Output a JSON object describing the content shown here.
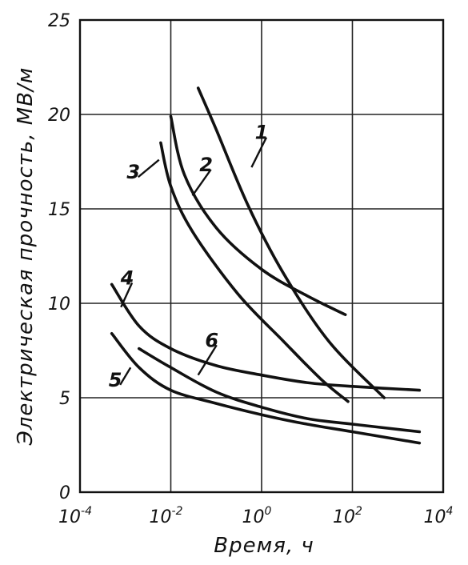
{
  "chart_data": {
    "type": "line",
    "xlabel": "Время, ч",
    "ylabel": "Электрическая прочность, МВ/м",
    "x_scale": "log",
    "xlim": [
      0.0001,
      10000
    ],
    "ylim": [
      0,
      25
    ],
    "x_ticks": [
      {
        "value": 0.0001,
        "base": "10",
        "exp": "-4"
      },
      {
        "value": 0.01,
        "base": "10",
        "exp": "-2"
      },
      {
        "value": 1,
        "base": "10",
        "exp": "0"
      },
      {
        "value": 100,
        "base": "10",
        "exp": "2"
      },
      {
        "value": 10000,
        "base": "10",
        "exp": "4"
      }
    ],
    "y_ticks": [
      0,
      5,
      10,
      15,
      20,
      25
    ],
    "grid": true,
    "series": [
      {
        "name": "1",
        "points": [
          [
            0.04,
            21.4
          ],
          [
            0.1,
            19.2
          ],
          [
            0.5,
            15.2
          ],
          [
            3,
            11.6
          ],
          [
            30,
            8.0
          ],
          [
            500,
            5.0
          ]
        ]
      },
      {
        "name": "2",
        "points": [
          [
            0.01,
            19.9
          ],
          [
            0.02,
            16.8
          ],
          [
            0.1,
            14.0
          ],
          [
            1,
            11.8
          ],
          [
            10,
            10.4
          ],
          [
            70,
            9.4
          ]
        ]
      },
      {
        "name": "3",
        "points": [
          [
            0.006,
            18.5
          ],
          [
            0.01,
            16.2
          ],
          [
            0.03,
            13.8
          ],
          [
            0.3,
            10.5
          ],
          [
            3,
            8.0
          ],
          [
            20,
            6.0
          ],
          [
            80,
            4.8
          ]
        ]
      },
      {
        "name": "4",
        "points": [
          [
            0.0005,
            11.0
          ],
          [
            0.002,
            8.8
          ],
          [
            0.01,
            7.6
          ],
          [
            0.1,
            6.7
          ],
          [
            1,
            6.2
          ],
          [
            10,
            5.8
          ],
          [
            100,
            5.6
          ],
          [
            3000,
            5.4
          ]
        ]
      },
      {
        "name": "5",
        "points": [
          [
            0.0005,
            8.4
          ],
          [
            0.002,
            6.6
          ],
          [
            0.01,
            5.4
          ],
          [
            0.1,
            4.7
          ],
          [
            1,
            4.1
          ],
          [
            10,
            3.6
          ],
          [
            100,
            3.2
          ],
          [
            3000,
            2.6
          ]
        ]
      },
      {
        "name": "6",
        "points": [
          [
            0.002,
            7.6
          ],
          [
            0.01,
            6.6
          ],
          [
            0.1,
            5.3
          ],
          [
            1,
            4.5
          ],
          [
            10,
            3.9
          ],
          [
            100,
            3.6
          ],
          [
            3000,
            3.2
          ]
        ]
      }
    ],
    "curve_labels": [
      {
        "text": "1",
        "x": 1,
        "y": 18.7,
        "lx": 0.6,
        "ly": 17.2
      },
      {
        "text": "2",
        "x": 0.06,
        "y": 17.0,
        "lx": 0.03,
        "ly": 15.7
      },
      {
        "text": "3",
        "x": 0.0015,
        "y": 16.6,
        "lx": 0.0055,
        "ly": 17.6
      },
      {
        "text": "4",
        "x": 0.0011,
        "y": 11.0,
        "lx": 0.0008,
        "ly": 9.8
      },
      {
        "text": "5",
        "x": 0.0006,
        "y": 5.6,
        "lx": 0.0013,
        "ly": 6.6
      },
      {
        "text": "6",
        "x": 0.08,
        "y": 7.7,
        "lx": 0.04,
        "ly": 6.2
      }
    ]
  }
}
